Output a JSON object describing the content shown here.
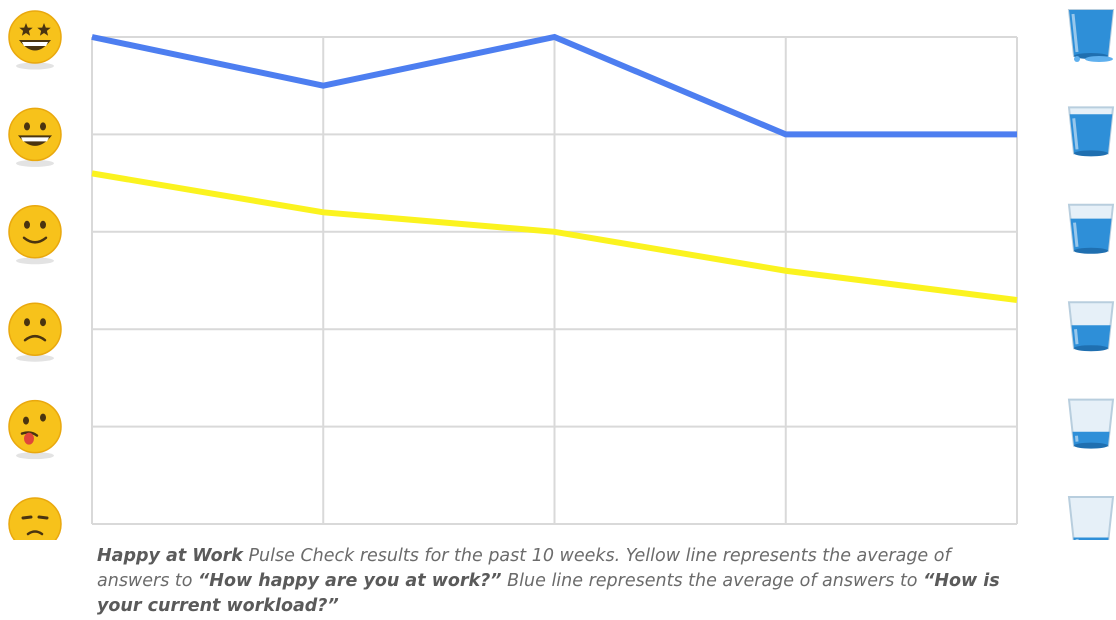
{
  "chart_data": {
    "type": "line",
    "title": "",
    "xlabel": "",
    "ylabel": "",
    "x": [
      0,
      1,
      2,
      3,
      4
    ],
    "ylim": [
      0,
      5
    ],
    "grid": true,
    "series": [
      {
        "key": "workload",
        "color": "#4d7ef0",
        "values": [
          5,
          4.5,
          5,
          4,
          4
        ]
      },
      {
        "key": "happiness",
        "color": "#fbf31f",
        "values": [
          3.6,
          3.2,
          3.0,
          2.6,
          2.3
        ]
      }
    ],
    "y_axis_icons": [
      {
        "level": 5,
        "icon": "star-eyes-grin-emoji-icon"
      },
      {
        "level": 4,
        "icon": "grin-emoji-icon"
      },
      {
        "level": 3,
        "icon": "smile-emoji-icon"
      },
      {
        "level": 2,
        "icon": "frown-emoji-icon"
      },
      {
        "level": 1,
        "icon": "tongue-worried-emoji-icon"
      },
      {
        "level": 0,
        "icon": "sad-emoji-icon"
      }
    ],
    "right_axis_icons": [
      {
        "level": 5,
        "icon": "overflowing-glass-icon",
        "fill": 1.0
      },
      {
        "level": 4,
        "icon": "full-glass-icon",
        "fill": 0.85
      },
      {
        "level": 3,
        "icon": "glass-icon",
        "fill": 0.7
      },
      {
        "level": 2,
        "icon": "glass-icon",
        "fill": 0.5
      },
      {
        "level": 1,
        "icon": "glass-icon",
        "fill": 0.3
      },
      {
        "level": 0,
        "icon": "nearly-empty-glass-icon",
        "fill": 0.12
      }
    ]
  },
  "caption": {
    "part1_bold": "Happy at Work",
    "part2": " Pulse Check results for the past 10 weeks. Yellow line represents the average of answers to ",
    "part3_bold": "“How happy are you at work?”",
    "part4": " Blue line represents the average of answers to ",
    "part5_bold": "“How is your current workload?”"
  }
}
